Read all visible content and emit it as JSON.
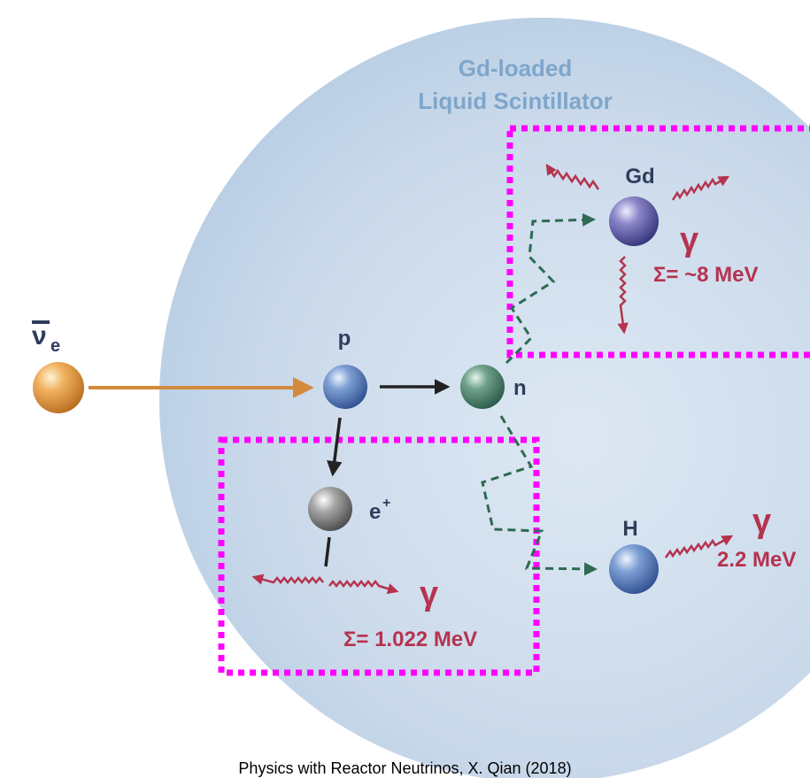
{
  "title": {
    "line1": "Gd-loaded",
    "line2": "Liquid Scintillator"
  },
  "particles": {
    "antineutrino_symbol": "ν",
    "antineutrino_subscript": "e",
    "proton": "p",
    "neutron": "n",
    "positron_symbol": "e",
    "positron_charge": "+",
    "gadolinium": "Gd",
    "hydrogen": "H"
  },
  "annotations": {
    "gamma": "γ",
    "gd_energy": "Σ= ~8 MeV",
    "h_energy": "2.2 MeV",
    "annihilation_energy": "Σ= 1.022 MeV"
  },
  "caption": "Physics with Reactor Neutrinos, X. Qian (2018)",
  "colors": {
    "sphere": "#c3d6e8",
    "title": "#7ea6cc",
    "label_dark": "#2f3d5c",
    "gamma": "#b5334f",
    "neutron_path": "#2e6b52",
    "highlight_box": "#ff00ff",
    "antineutrino_arrow": "#d48a3c"
  },
  "icons": [
    "antineutrino-ball",
    "proton-ball",
    "neutron-ball",
    "positron-ball",
    "gadolinium-ball",
    "hydrogen-ball",
    "wavy-gamma-arrow"
  ]
}
